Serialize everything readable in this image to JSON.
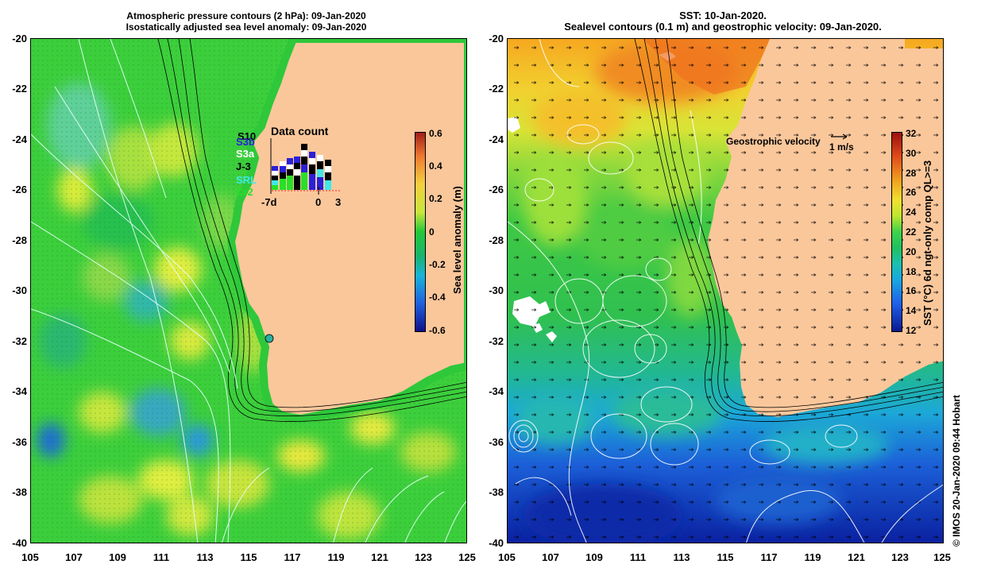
{
  "left_panel": {
    "title_line1": "Atmospheric pressure contours (2 hPa): 09-Jan-2020",
    "title_line2": "Isostatically adjusted sea level anomaly: 09-Jan-2020",
    "colorbar": {
      "title": "Sea level anomaly (m)",
      "ticks": [
        "0.6",
        "0.4",
        "0.2",
        "0",
        "-0.2",
        "-0.4",
        "-0.6"
      ]
    },
    "data_count": {
      "title": "Data count",
      "satellites": [
        {
          "name": "S3b",
          "color": "#2a20d8"
        },
        {
          "name": "S3a",
          "color": "#ffffff"
        },
        {
          "name": "J-3",
          "color": "#000000"
        },
        {
          "name": "SRL",
          "color": "#40e8e8"
        },
        {
          "name": "Cr2",
          "color": "#28e028"
        }
      ],
      "overlap_label": "S10",
      "axis_labels": [
        "-7d",
        "0",
        "3"
      ]
    }
  },
  "right_panel": {
    "title_line1": "SST: 10-Jan-2020.",
    "title_line2": "Sealevel contours (0.1 m) and geostrophic velocity: 09-Jan-2020.",
    "velocity_legend": "Geostrophic velocity",
    "velocity_scale": "1 m/s",
    "colorbar": {
      "title": "SST (°C) 6d ngt-only comp QL>=3",
      "ticks": [
        "32",
        "30",
        "28",
        "26",
        "24",
        "22",
        "20",
        "18",
        "16",
        "14",
        "12"
      ]
    }
  },
  "axes": {
    "y_ticks": [
      "-20",
      "-22",
      "-24",
      "-26",
      "-28",
      "-30",
      "-32",
      "-34",
      "-36",
      "-38",
      "-40"
    ],
    "x_ticks": [
      "105",
      "107",
      "109",
      "111",
      "113",
      "115",
      "117",
      "119",
      "121",
      "123",
      "125"
    ]
  },
  "credit": "© IMOS 20-Jan-2020 09:44 Hobart",
  "colors": {
    "land": "#fac79b",
    "ocean_green": "#2ec83a",
    "contour": "#ffffff",
    "bathymetry": "#000000"
  }
}
